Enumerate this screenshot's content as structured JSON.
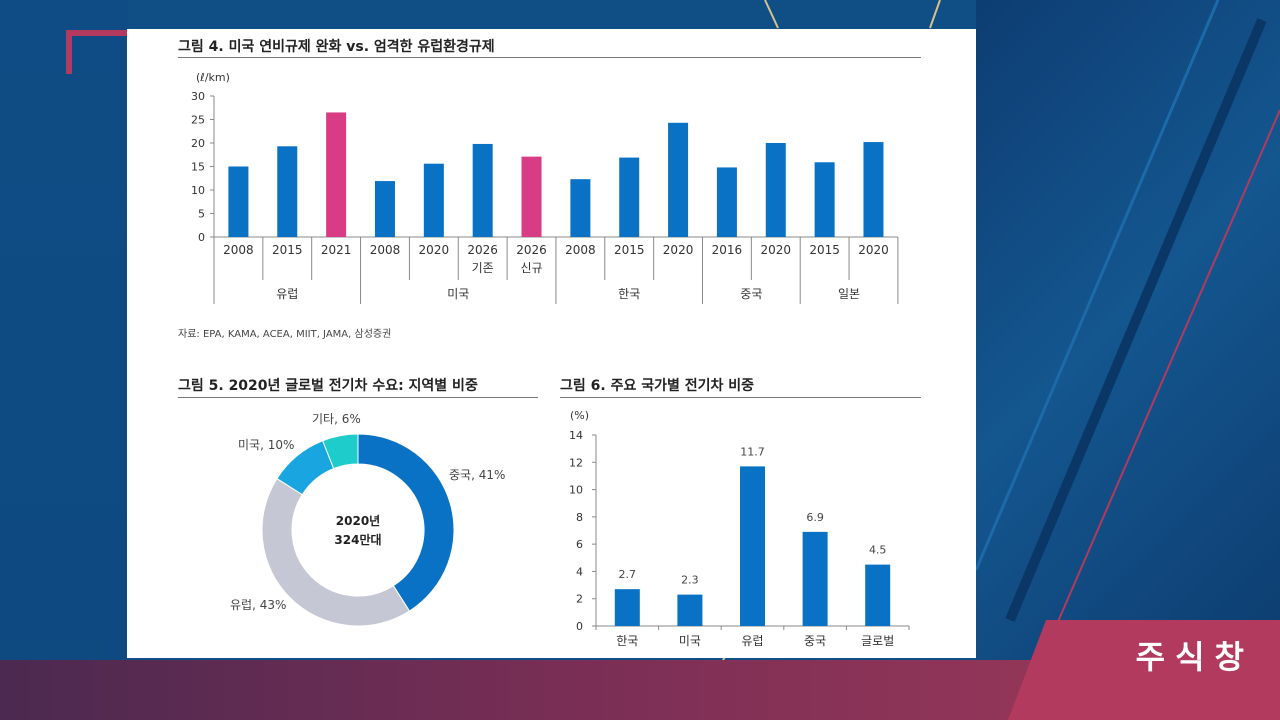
{
  "brand": {
    "name": "주식창",
    "accent": "#b23a5e"
  },
  "fig4": {
    "title": "그림 4. 미국 연비규제 완화 vs. 엄격한 유럽환경규제"
  },
  "fig5": {
    "title": "그림 5. 2020년 글로벌 전기차 수요: 지역별 비중"
  },
  "fig6": {
    "title": "그림 6. 주요 국가별 전기차 비중"
  },
  "source": "자료: EPA, KAMA, ACEA, MIIT, JAMA, 삼성증권",
  "chart_data": [
    {
      "type": "bar",
      "title": "그림 4. 미국 연비규제 완화 vs. 엄격한 유럽환경규제",
      "ylabel": "(ℓ/km)",
      "ylim": [
        0,
        30
      ],
      "yticks": [
        0,
        5,
        10,
        15,
        20,
        25,
        30
      ],
      "categories": [
        "2008",
        "2015",
        "2021",
        "2008",
        "2020",
        "2026\n기존",
        "2026\n신규",
        "2008",
        "2015",
        "2020",
        "2016",
        "2020",
        "2015",
        "2020"
      ],
      "groups": [
        {
          "name": "유럽",
          "size": 3
        },
        {
          "name": "미국",
          "size": 4
        },
        {
          "name": "한국",
          "size": 3
        },
        {
          "name": "중국",
          "size": 2
        },
        {
          "name": "일본",
          "size": 2
        }
      ],
      "values": [
        15.0,
        19.3,
        26.5,
        11.9,
        15.6,
        19.8,
        17.1,
        12.3,
        16.9,
        24.3,
        14.8,
        20.0,
        15.9,
        20.2
      ],
      "highlight": [
        false,
        false,
        true,
        false,
        false,
        false,
        true,
        false,
        false,
        false,
        false,
        false,
        false,
        false
      ],
      "colors": {
        "normal": "#0a72c4",
        "highlight": "#d83c84"
      },
      "grid": false,
      "legend": "none"
    },
    {
      "type": "pie",
      "title": "그림 5. 2020년 글로벌 전기차 수요: 지역별 비중",
      "center_text": [
        "2020년",
        "324만대"
      ],
      "slices": [
        {
          "label": "중국, 41%",
          "value": 41,
          "color": "#0a72c4"
        },
        {
          "label": "유럽, 43%",
          "value": 43,
          "color": "#c5c8d4"
        },
        {
          "label": "미국, 10%",
          "value": 10,
          "color": "#19a5e0"
        },
        {
          "label": "기타, 6%",
          "value": 6,
          "color": "#1fcccc"
        }
      ]
    },
    {
      "type": "bar",
      "title": "그림 6. 주요 국가별 전기차 비중",
      "ylabel": "(%)",
      "ylim": [
        0,
        14
      ],
      "yticks": [
        0,
        2,
        4,
        6,
        8,
        10,
        12,
        14
      ],
      "categories": [
        "한국",
        "미국",
        "유럽",
        "중국",
        "글로벌"
      ],
      "values": [
        2.7,
        2.3,
        11.7,
        6.9,
        4.5
      ],
      "value_labels": [
        "2.7",
        "2.3",
        "11.7",
        "6.9",
        "4.5"
      ],
      "color": "#0a72c4",
      "grid": false,
      "legend": "none"
    }
  ]
}
